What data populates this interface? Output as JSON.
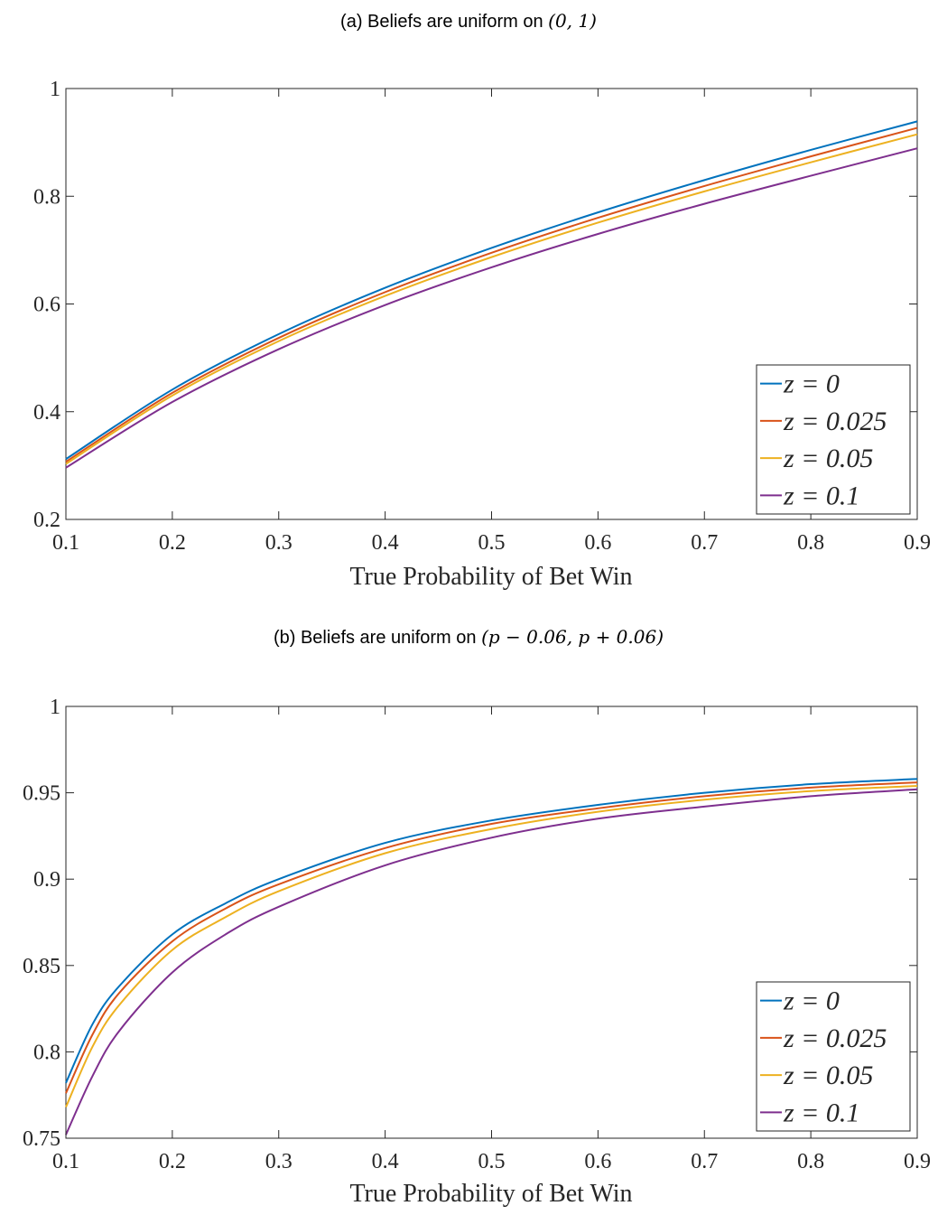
{
  "chart_data": [
    {
      "type": "line",
      "title": "(a) Beliefs are uniform on (0, 1)",
      "title_parts": {
        "text": "(a) Beliefs are uniform on ",
        "math": "(0, 1)"
      },
      "xlabel": "True Probability of Bet Win",
      "ylabel": "",
      "xlim": [
        0.1,
        0.9
      ],
      "ylim": [
        0.2,
        1
      ],
      "xticks": [
        "0.1",
        "0.2",
        "0.3",
        "0.4",
        "0.5",
        "0.6",
        "0.7",
        "0.8",
        "0.9"
      ],
      "yticks": [
        "0.2",
        "0.4",
        "0.6",
        "0.8",
        "1"
      ],
      "legend_position": "bottom-right",
      "x": [
        0.1,
        0.2,
        0.3,
        0.4,
        0.5,
        0.6,
        0.7,
        0.8,
        0.9
      ],
      "series": [
        {
          "name": "z = 0",
          "color": "#0072BD",
          "values": [
            0.312,
            0.441,
            0.544,
            0.63,
            0.704,
            0.77,
            0.83,
            0.886,
            0.939
          ]
        },
        {
          "name": "z = 0.025",
          "color": "#D95319",
          "values": [
            0.307,
            0.435,
            0.537,
            0.622,
            0.695,
            0.76,
            0.819,
            0.874,
            0.927
          ]
        },
        {
          "name": "z = 0.05",
          "color": "#EDB120",
          "values": [
            0.303,
            0.43,
            0.531,
            0.615,
            0.687,
            0.751,
            0.809,
            0.863,
            0.915
          ]
        },
        {
          "name": "z = 0.1",
          "color": "#7E2F8E",
          "values": [
            0.296,
            0.418,
            0.516,
            0.598,
            0.668,
            0.73,
            0.786,
            0.838,
            0.889
          ]
        }
      ]
    },
    {
      "type": "line",
      "title": "(b) Beliefs are uniform on (p − 0.06, p + 0.06)",
      "title_parts": {
        "text": "(b) Beliefs are uniform on ",
        "math": "(p − 0.06, p + 0.06)"
      },
      "xlabel": "True Probability of Bet Win",
      "ylabel": "",
      "xlim": [
        0.1,
        0.9
      ],
      "ylim": [
        0.75,
        1
      ],
      "xticks": [
        "0.1",
        "0.2",
        "0.3",
        "0.4",
        "0.5",
        "0.6",
        "0.7",
        "0.8",
        "0.9"
      ],
      "yticks": [
        "0.75",
        "0.8",
        "0.85",
        "0.9",
        "0.95",
        "1"
      ],
      "legend_position": "bottom-right",
      "x": [
        0.1,
        0.125,
        0.15,
        0.2,
        0.25,
        0.3,
        0.4,
        0.5,
        0.6,
        0.7,
        0.8,
        0.9
      ],
      "series": [
        {
          "name": "z = 0",
          "color": "#0072BD",
          "values": [
            0.782,
            0.816,
            0.838,
            0.868,
            0.886,
            0.9,
            0.921,
            0.934,
            0.943,
            0.95,
            0.955,
            0.958
          ]
        },
        {
          "name": "z = 0.025",
          "color": "#D95319",
          "values": [
            0.776,
            0.81,
            0.834,
            0.864,
            0.883,
            0.897,
            0.918,
            0.932,
            0.941,
            0.948,
            0.953,
            0.956
          ]
        },
        {
          "name": "z = 0.05",
          "color": "#EDB120",
          "values": [
            0.768,
            0.803,
            0.827,
            0.859,
            0.878,
            0.893,
            0.915,
            0.929,
            0.939,
            0.946,
            0.951,
            0.954
          ]
        },
        {
          "name": "z = 0.1",
          "color": "#7E2F8E",
          "values": [
            0.752,
            0.786,
            0.812,
            0.846,
            0.868,
            0.884,
            0.908,
            0.924,
            0.935,
            0.942,
            0.948,
            0.952
          ]
        }
      ]
    }
  ]
}
